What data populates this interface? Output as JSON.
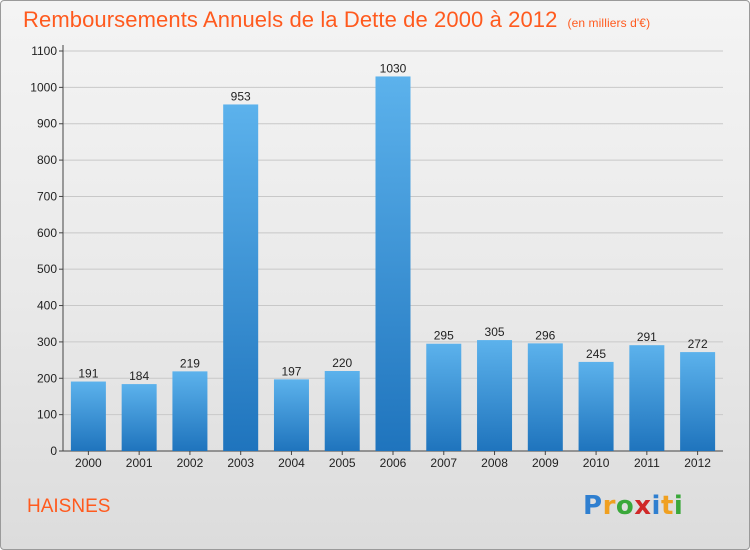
{
  "header": {
    "title": "Remboursements Annuels de la Dette de 2000 à 2012",
    "unit": "(en milliers d'€)"
  },
  "footer": {
    "city": "HAISNES",
    "logo_letters": [
      "P",
      "r",
      "o",
      "x",
      "i",
      "t",
      "i"
    ],
    "logo_colors": [
      "#2f7fd0",
      "#f0a020",
      "#3aa83a",
      "#d02828",
      "#2f7fd0",
      "#f0a020",
      "#3aa83a"
    ]
  },
  "colors": {
    "title": "#ff5a1e",
    "bar_light": "#5cb2ec",
    "bar_dark": "#1f74bd",
    "grid": "#c8c8c8"
  },
  "chart_data": {
    "type": "bar",
    "categories": [
      "2000",
      "2001",
      "2002",
      "2003",
      "2004",
      "2005",
      "2006",
      "2007",
      "2008",
      "2009",
      "2010",
      "2011",
      "2012"
    ],
    "values": [
      191,
      184,
      219,
      953,
      197,
      220,
      1030,
      295,
      305,
      296,
      245,
      291,
      272
    ],
    "ylim": [
      0,
      1100
    ],
    "yticks": [
      0,
      100,
      200,
      300,
      400,
      500,
      600,
      700,
      800,
      900,
      1000,
      1100
    ],
    "grid": true,
    "legend": "none"
  }
}
